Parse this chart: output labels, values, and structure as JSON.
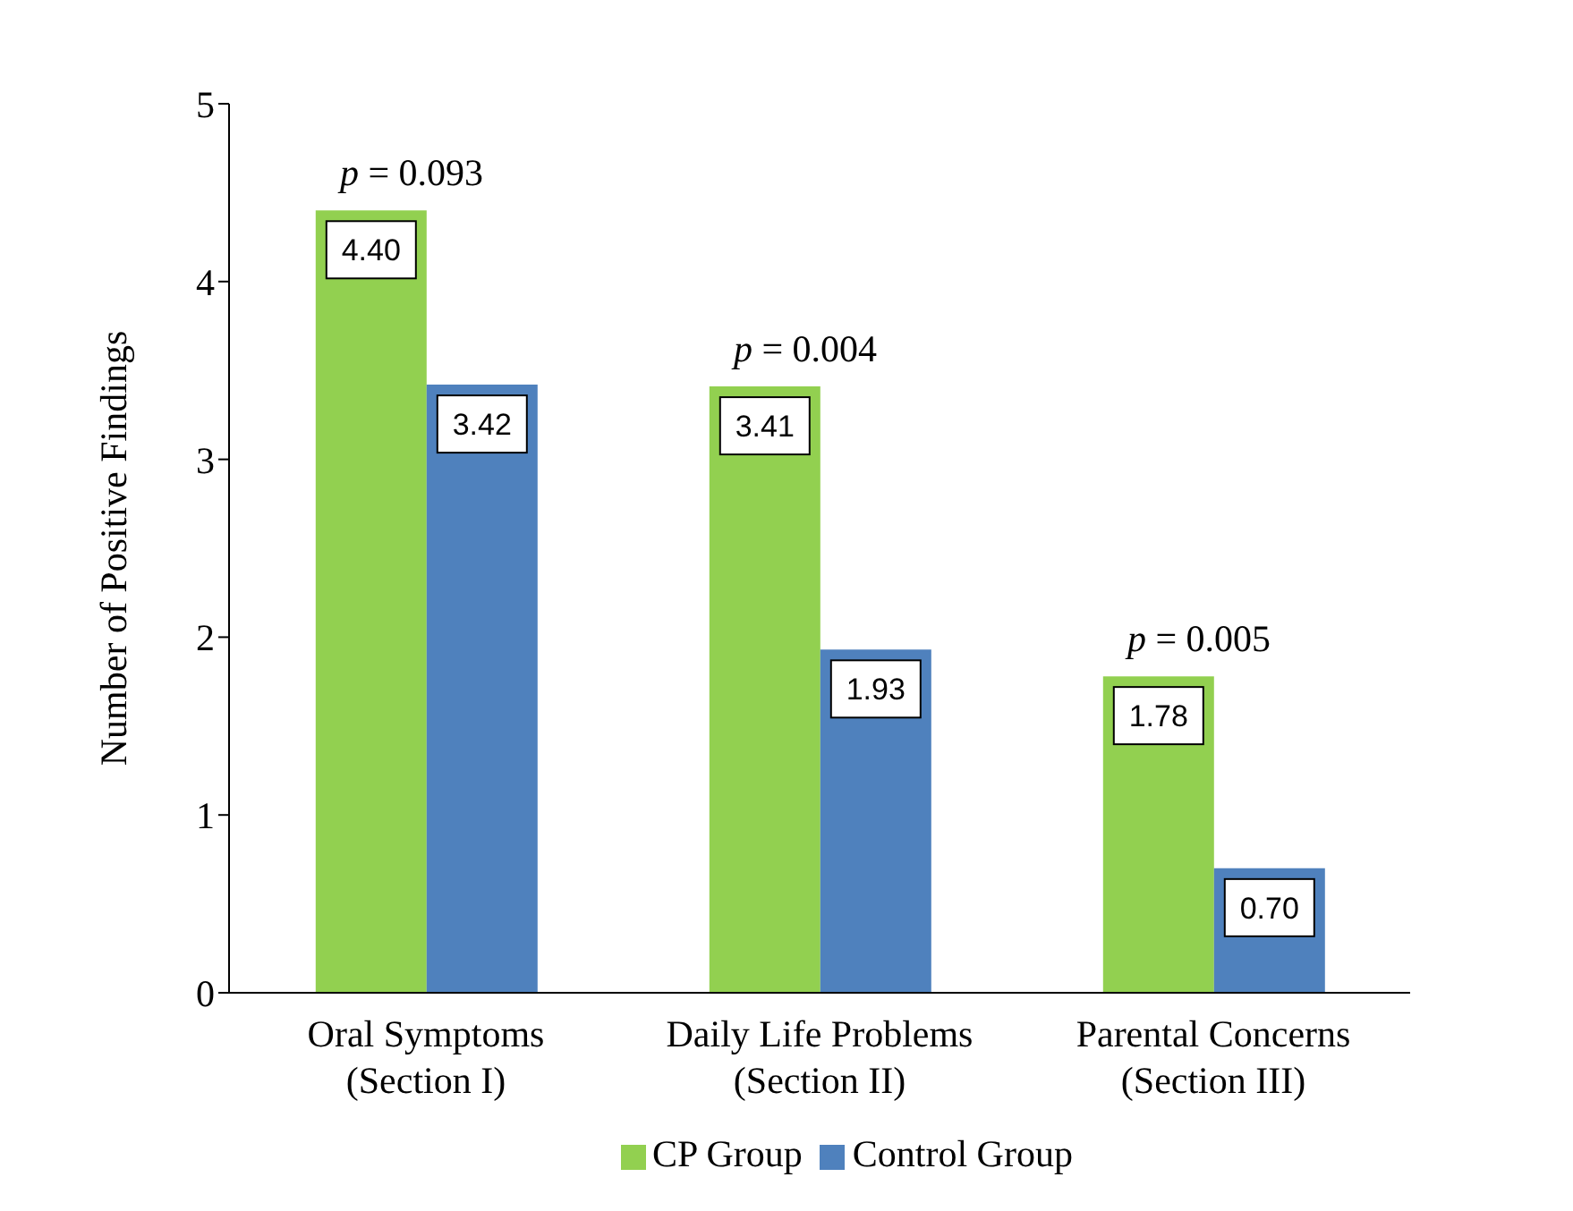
{
  "chart_data": {
    "type": "bar",
    "ylabel": "Number of Positive Findings",
    "categories": [
      "Oral Symptoms\n(Section I)",
      "Daily Life Problems\n(Section II)",
      "Parental Concerns\n(Section III)"
    ],
    "series": [
      {
        "name": "CP Group",
        "color": "#92d050",
        "values": [
          4.4,
          3.41,
          1.78
        ],
        "value_labels": [
          "4.40",
          "3.41",
          "1.78"
        ]
      },
      {
        "name": "Control Group",
        "color": "#4f81bd",
        "values": [
          3.42,
          1.93,
          0.7
        ],
        "value_labels": [
          "3.42",
          "1.93",
          "0.70"
        ]
      }
    ],
    "ylim": [
      0,
      5
    ],
    "yticks": [
      0,
      1,
      2,
      3,
      4,
      5
    ],
    "grid": false,
    "legend": "bottom",
    "annotations": [
      {
        "text": "p = 0.093",
        "x": "Oral Symptoms\n(Section I)",
        "y": 4.4
      },
      {
        "text": "p = 0.004",
        "x": "Daily Life Problems\n(Section II)",
        "y": 3.41
      },
      {
        "text": "p = 0.005",
        "x": "Parental Concerns\n(Section III)",
        "y": 1.78
      }
    ]
  }
}
